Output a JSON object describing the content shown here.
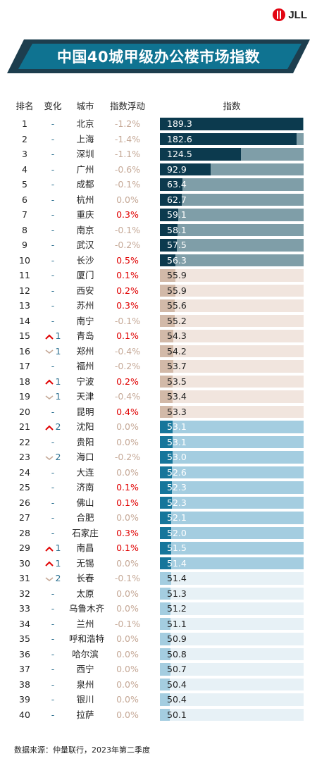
{
  "brand": {
    "logo_text": "JLL"
  },
  "title": "中国40城甲级办公楼市场指数",
  "headers": {
    "rank": "排名",
    "change": "变化",
    "city": "城市",
    "float": "指数浮动",
    "index": "指数"
  },
  "source": "数据来源：仲量联行，2023年第二季度",
  "colors": {
    "banner_dark": "#1d3e4e",
    "banner_main": "#0f7391",
    "tier1_bar": "#0c3a4e",
    "tier1_track": "#7f9ea8",
    "tier2_bar": "#d2b9a8",
    "tier2_track": "#f1e5de",
    "tier3_bar": "#16769b",
    "tier3_track": "#a4cde0",
    "tier4_bar": "#a4cde0",
    "tier4_track": "#e7f1f6"
  },
  "chart_data": {
    "type": "bar",
    "xlim": [
      40,
      190
    ],
    "rows": [
      {
        "rank": "1",
        "change": "-",
        "city": "北京",
        "float": "-1.2%",
        "value": 189.3,
        "tier": 1
      },
      {
        "rank": "2",
        "change": "-",
        "city": "上海",
        "float": "-1.4%",
        "value": 182.6,
        "tier": 1
      },
      {
        "rank": "3",
        "change": "-",
        "city": "深圳",
        "float": "-1.1%",
        "value": 124.5,
        "tier": 1
      },
      {
        "rank": "4",
        "change": "-",
        "city": "广州",
        "float": "-0.6%",
        "value": 92.9,
        "tier": 1
      },
      {
        "rank": "5",
        "change": "-",
        "city": "成都",
        "float": "-0.1%",
        "value": 63.4,
        "tier": 1
      },
      {
        "rank": "6",
        "change": "-",
        "city": "杭州",
        "float": "0.0%",
        "value": 62.7,
        "tier": 1
      },
      {
        "rank": "7",
        "change": "-",
        "city": "重庆",
        "float": "0.3%",
        "value": 59.1,
        "tier": 1
      },
      {
        "rank": "8",
        "change": "-",
        "city": "南京",
        "float": "-0.1%",
        "value": 58.1,
        "tier": 1
      },
      {
        "rank": "9",
        "change": "-",
        "city": "武汉",
        "float": "-0.2%",
        "value": 57.5,
        "tier": 1
      },
      {
        "rank": "10",
        "change": "-",
        "city": "长沙",
        "float": "0.5%",
        "value": 56.3,
        "tier": 1
      },
      {
        "rank": "11",
        "change": "-",
        "city": "厦门",
        "float": "0.1%",
        "value": 55.9,
        "tier": 2
      },
      {
        "rank": "12",
        "change": "-",
        "city": "西安",
        "float": "0.2%",
        "value": 55.9,
        "tier": 2
      },
      {
        "rank": "13",
        "change": "-",
        "city": "苏州",
        "float": "0.3%",
        "value": 55.6,
        "tier": 2
      },
      {
        "rank": "14",
        "change": "-",
        "city": "南宁",
        "float": "-0.1%",
        "value": 55.2,
        "tier": 2
      },
      {
        "rank": "15",
        "change": "1",
        "dir": "up",
        "city": "青岛",
        "float": "0.1%",
        "value": 54.3,
        "tier": 2
      },
      {
        "rank": "16",
        "change": "1",
        "dir": "down",
        "city": "郑州",
        "float": "-0.4%",
        "value": 54.2,
        "tier": 2
      },
      {
        "rank": "17",
        "change": "-",
        "city": "福州",
        "float": "-0.2%",
        "value": 53.7,
        "tier": 2
      },
      {
        "rank": "18",
        "change": "1",
        "dir": "up",
        "city": "宁波",
        "float": "0.2%",
        "value": 53.5,
        "tier": 2
      },
      {
        "rank": "19",
        "change": "1",
        "dir": "down",
        "city": "天津",
        "float": "-0.4%",
        "value": 53.4,
        "tier": 2
      },
      {
        "rank": "20",
        "change": "-",
        "city": "昆明",
        "float": "0.4%",
        "value": 53.3,
        "tier": 2
      },
      {
        "rank": "21",
        "change": "2",
        "dir": "up",
        "city": "沈阳",
        "float": "0.0%",
        "value": 53.1,
        "tier": 3
      },
      {
        "rank": "22",
        "change": "-",
        "city": "贵阳",
        "float": "0.0%",
        "value": 53.1,
        "tier": 3
      },
      {
        "rank": "23",
        "change": "2",
        "dir": "down",
        "city": "海口",
        "float": "-0.2%",
        "value": 53.0,
        "tier": 3
      },
      {
        "rank": "24",
        "change": "-",
        "city": "大连",
        "float": "0.0%",
        "value": 52.6,
        "tier": 3
      },
      {
        "rank": "25",
        "change": "-",
        "city": "济南",
        "float": "0.1%",
        "value": 52.3,
        "tier": 3
      },
      {
        "rank": "26",
        "change": "-",
        "city": "佛山",
        "float": "0.1%",
        "value": 52.3,
        "tier": 3
      },
      {
        "rank": "27",
        "change": "-",
        "city": "合肥",
        "float": "0.0%",
        "value": 52.1,
        "tier": 3
      },
      {
        "rank": "28",
        "change": "-",
        "city": "石家庄",
        "float": "0.3%",
        "value": 52.0,
        "tier": 3
      },
      {
        "rank": "29",
        "change": "1",
        "dir": "up",
        "city": "南昌",
        "float": "0.1%",
        "value": 51.5,
        "tier": 3
      },
      {
        "rank": "30",
        "change": "1",
        "dir": "up",
        "city": "无锡",
        "float": "0.0%",
        "value": 51.4,
        "tier": 3
      },
      {
        "rank": "31",
        "change": "2",
        "dir": "down",
        "city": "长春",
        "float": "-0.1%",
        "value": 51.4,
        "tier": 4
      },
      {
        "rank": "32",
        "change": "-",
        "city": "太原",
        "float": "0.0%",
        "value": 51.3,
        "tier": 4
      },
      {
        "rank": "33",
        "change": "-",
        "city": "乌鲁木齐",
        "float": "0.0%",
        "value": 51.2,
        "tier": 4
      },
      {
        "rank": "34",
        "change": "-",
        "city": "兰州",
        "float": "-0.1%",
        "value": 51.1,
        "tier": 4
      },
      {
        "rank": "35",
        "change": "-",
        "city": "呼和浩特",
        "float": "0.0%",
        "value": 50.9,
        "tier": 4
      },
      {
        "rank": "36",
        "change": "-",
        "city": "哈尔滨",
        "float": "0.0%",
        "value": 50.8,
        "tier": 4
      },
      {
        "rank": "37",
        "change": "-",
        "city": "西宁",
        "float": "0.0%",
        "value": 50.7,
        "tier": 4
      },
      {
        "rank": "38",
        "change": "-",
        "city": "泉州",
        "float": "0.0%",
        "value": 50.4,
        "tier": 4
      },
      {
        "rank": "39",
        "change": "-",
        "city": "银川",
        "float": "0.0%",
        "value": 50.4,
        "tier": 4
      },
      {
        "rank": "40",
        "change": "-",
        "city": "拉萨",
        "float": "0.0%",
        "value": 50.1,
        "tier": 4
      }
    ]
  }
}
